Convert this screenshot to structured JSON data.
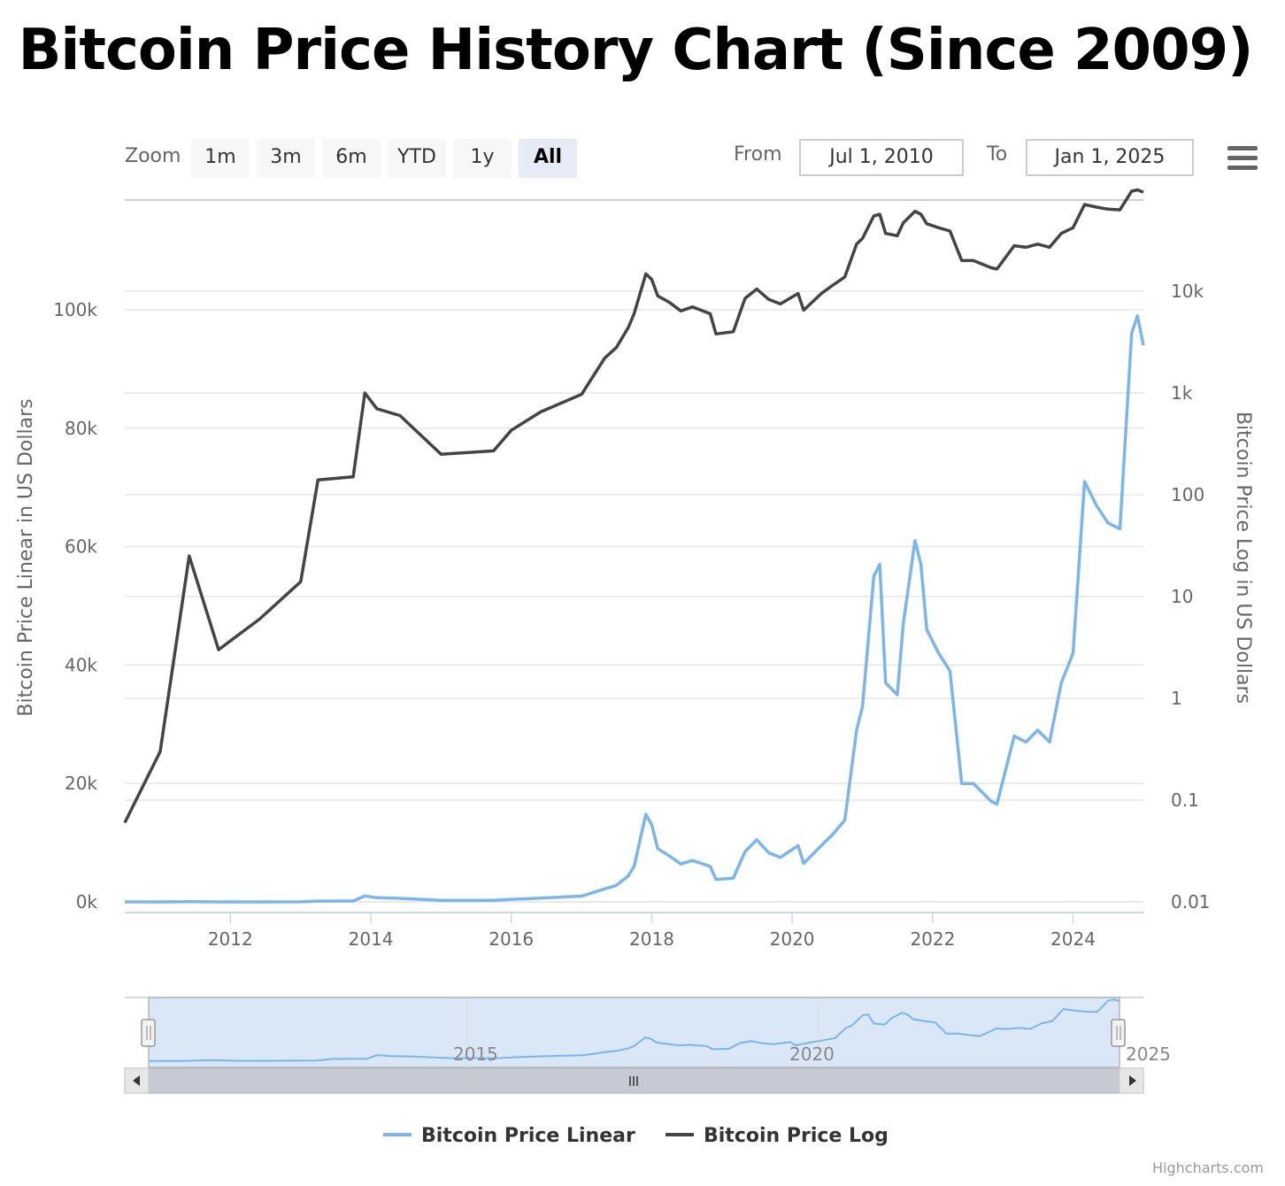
{
  "title": "Bitcoin Price History Chart (Since 2009)",
  "toolbar": {
    "zoom_label": "Zoom",
    "zoom_buttons": [
      {
        "label": "1m",
        "active": false
      },
      {
        "label": "3m",
        "active": false
      },
      {
        "label": "6m",
        "active": false
      },
      {
        "label": "YTD",
        "active": false
      },
      {
        "label": "1y",
        "active": false
      },
      {
        "label": "All",
        "active": true
      }
    ],
    "from_label": "From",
    "from_value": "Jul 1, 2010",
    "to_label": "To",
    "to_value": "Jan 1, 2025"
  },
  "colors": {
    "linear": "#7cb5ec",
    "log": "#434348",
    "grid": "#e6e6e6",
    "navigator_mask": "#d6e4f5"
  },
  "icons": {
    "menu": "hamburger-menu-icon"
  },
  "chart_data": {
    "type": "line",
    "x_range": [
      "2010-07-01",
      "2025-01-01"
    ],
    "x_ticks": [
      "2012",
      "2014",
      "2016",
      "2018",
      "2020",
      "2022",
      "2024"
    ],
    "y_left": {
      "label": "Bitcoin Price Linear in US Dollars",
      "min": 0,
      "max": 120000,
      "ticks": [
        {
          "value": 0,
          "label": "0k"
        },
        {
          "value": 20000,
          "label": "20k"
        },
        {
          "value": 40000,
          "label": "40k"
        },
        {
          "value": 60000,
          "label": "60k"
        },
        {
          "value": 80000,
          "label": "80k"
        },
        {
          "value": 100000,
          "label": "100k"
        }
      ]
    },
    "y_right": {
      "label": "Bitcoin Price Log in US Dollars",
      "scale": "log",
      "min": 0.01,
      "max": 100000,
      "ticks": [
        {
          "value": 0.01,
          "label": "0.01"
        },
        {
          "value": 0.1,
          "label": "0.1"
        },
        {
          "value": 1,
          "label": "1"
        },
        {
          "value": 10,
          "label": "10"
        },
        {
          "value": 100,
          "label": "100"
        },
        {
          "value": 1000,
          "label": "1k"
        },
        {
          "value": 10000,
          "label": "10k"
        }
      ]
    },
    "legend_position": "bottom-center",
    "grid": true,
    "series": [
      {
        "name": "Bitcoin Price Linear",
        "axis": "left",
        "color": "#7cb5ec",
        "points": [
          [
            "2010-07-01",
            0.06
          ],
          [
            "2011-01-01",
            0.3
          ],
          [
            "2011-06-01",
            25
          ],
          [
            "2011-11-01",
            3
          ],
          [
            "2012-06-01",
            6
          ],
          [
            "2013-01-01",
            14
          ],
          [
            "2013-04-01",
            140
          ],
          [
            "2013-10-01",
            150
          ],
          [
            "2013-12-01",
            1000
          ],
          [
            "2014-02-01",
            700
          ],
          [
            "2014-06-01",
            600
          ],
          [
            "2015-01-01",
            250
          ],
          [
            "2015-10-01",
            270
          ],
          [
            "2016-01-01",
            430
          ],
          [
            "2016-06-01",
            650
          ],
          [
            "2017-01-01",
            970
          ],
          [
            "2017-05-01",
            2200
          ],
          [
            "2017-07-01",
            2800
          ],
          [
            "2017-09-01",
            4400
          ],
          [
            "2017-10-01",
            6000
          ],
          [
            "2017-12-01",
            14800
          ],
          [
            "2018-01-01",
            13000
          ],
          [
            "2018-02-01",
            9000
          ],
          [
            "2018-04-01",
            7800
          ],
          [
            "2018-06-01",
            6400
          ],
          [
            "2018-08-01",
            7000
          ],
          [
            "2018-11-01",
            6000
          ],
          [
            "2018-12-01",
            3800
          ],
          [
            "2019-03-01",
            4000
          ],
          [
            "2019-05-01",
            8500
          ],
          [
            "2019-07-01",
            10500
          ],
          [
            "2019-09-01",
            8300
          ],
          [
            "2019-11-01",
            7500
          ],
          [
            "2020-02-01",
            9500
          ],
          [
            "2020-03-01",
            6500
          ],
          [
            "2020-06-01",
            9500
          ],
          [
            "2020-08-01",
            11500
          ],
          [
            "2020-10-01",
            13800
          ],
          [
            "2020-12-01",
            29000
          ],
          [
            "2021-01-01",
            33000
          ],
          [
            "2021-03-01",
            55000
          ],
          [
            "2021-04-01",
            57000
          ],
          [
            "2021-05-01",
            37000
          ],
          [
            "2021-07-01",
            35000
          ],
          [
            "2021-08-01",
            47000
          ],
          [
            "2021-10-01",
            61000
          ],
          [
            "2021-11-01",
            57000
          ],
          [
            "2021-12-01",
            46000
          ],
          [
            "2022-02-01",
            42000
          ],
          [
            "2022-04-01",
            39000
          ],
          [
            "2022-06-01",
            20000
          ],
          [
            "2022-08-01",
            20000
          ],
          [
            "2022-11-01",
            17000
          ],
          [
            "2022-12-01",
            16500
          ],
          [
            "2023-03-01",
            28000
          ],
          [
            "2023-05-01",
            27000
          ],
          [
            "2023-07-01",
            29000
          ],
          [
            "2023-09-01",
            27000
          ],
          [
            "2023-11-01",
            37000
          ],
          [
            "2024-01-01",
            42000
          ],
          [
            "2024-03-01",
            71000
          ],
          [
            "2024-05-01",
            67000
          ],
          [
            "2024-07-01",
            64000
          ],
          [
            "2024-09-01",
            63000
          ],
          [
            "2024-11-01",
            96000
          ],
          [
            "2024-12-01",
            99000
          ],
          [
            "2025-01-01",
            94000
          ]
        ]
      },
      {
        "name": "Bitcoin Price Log",
        "axis": "right",
        "color": "#434348",
        "points": [
          [
            "2010-07-01",
            0.06
          ],
          [
            "2011-01-01",
            0.3
          ],
          [
            "2011-06-01",
            25
          ],
          [
            "2011-11-01",
            3
          ],
          [
            "2012-06-01",
            6
          ],
          [
            "2013-01-01",
            14
          ],
          [
            "2013-04-01",
            140
          ],
          [
            "2013-10-01",
            150
          ],
          [
            "2013-12-01",
            1000
          ],
          [
            "2014-02-01",
            700
          ],
          [
            "2014-06-01",
            600
          ],
          [
            "2015-01-01",
            250
          ],
          [
            "2015-10-01",
            270
          ],
          [
            "2016-01-01",
            430
          ],
          [
            "2016-06-01",
            650
          ],
          [
            "2017-01-01",
            970
          ],
          [
            "2017-05-01",
            2200
          ],
          [
            "2017-07-01",
            2800
          ],
          [
            "2017-09-01",
            4400
          ],
          [
            "2017-10-01",
            6000
          ],
          [
            "2017-12-01",
            14800
          ],
          [
            "2018-01-01",
            13000
          ],
          [
            "2018-02-01",
            9000
          ],
          [
            "2018-04-01",
            7800
          ],
          [
            "2018-06-01",
            6400
          ],
          [
            "2018-08-01",
            7000
          ],
          [
            "2018-11-01",
            6000
          ],
          [
            "2018-12-01",
            3800
          ],
          [
            "2019-03-01",
            4000
          ],
          [
            "2019-05-01",
            8500
          ],
          [
            "2019-07-01",
            10500
          ],
          [
            "2019-09-01",
            8300
          ],
          [
            "2019-11-01",
            7500
          ],
          [
            "2020-02-01",
            9500
          ],
          [
            "2020-03-01",
            6500
          ],
          [
            "2020-06-01",
            9500
          ],
          [
            "2020-08-01",
            11500
          ],
          [
            "2020-10-01",
            13800
          ],
          [
            "2020-12-01",
            29000
          ],
          [
            "2021-01-01",
            33000
          ],
          [
            "2021-03-01",
            55000
          ],
          [
            "2021-04-01",
            57000
          ],
          [
            "2021-05-01",
            37000
          ],
          [
            "2021-07-01",
            35000
          ],
          [
            "2021-08-01",
            47000
          ],
          [
            "2021-10-01",
            61000
          ],
          [
            "2021-11-01",
            57000
          ],
          [
            "2021-12-01",
            46000
          ],
          [
            "2022-02-01",
            42000
          ],
          [
            "2022-04-01",
            39000
          ],
          [
            "2022-06-01",
            20000
          ],
          [
            "2022-08-01",
            20000
          ],
          [
            "2022-11-01",
            17000
          ],
          [
            "2022-12-01",
            16500
          ],
          [
            "2023-03-01",
            28000
          ],
          [
            "2023-05-01",
            27000
          ],
          [
            "2023-07-01",
            29000
          ],
          [
            "2023-09-01",
            27000
          ],
          [
            "2023-11-01",
            37000
          ],
          [
            "2024-01-01",
            42000
          ],
          [
            "2024-03-01",
            71000
          ],
          [
            "2024-05-01",
            67000
          ],
          [
            "2024-07-01",
            64000
          ],
          [
            "2024-09-01",
            63000
          ],
          [
            "2024-11-01",
            96000
          ],
          [
            "2024-12-01",
            99000
          ],
          [
            "2025-01-01",
            94000
          ]
        ]
      }
    ],
    "navigator": {
      "x_ticks": [
        "2015",
        "2020",
        "2025"
      ],
      "selection": [
        "2010-07-01",
        "2025-01-01"
      ]
    }
  },
  "credits": "Highcharts.com"
}
